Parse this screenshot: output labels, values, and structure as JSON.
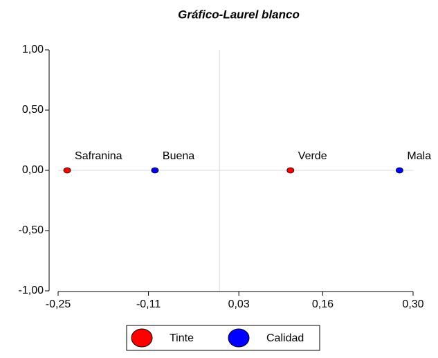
{
  "chart_data": {
    "type": "scatter",
    "title": "Gráfico-Laurel blanco",
    "xlim": [
      -0.25,
      0.3
    ],
    "ylim": [
      -1,
      1
    ],
    "xticks": [
      {
        "value": -0.25,
        "label": "-0,25"
      },
      {
        "value": -0.11,
        "label": "-0,11"
      },
      {
        "value": 0.03,
        "label": "0,03"
      },
      {
        "value": 0.16,
        "label": "0,16"
      },
      {
        "value": 0.3,
        "label": "0,30"
      }
    ],
    "yticks": [
      {
        "value": 1,
        "label": "1,00"
      },
      {
        "value": 0.5,
        "label": "0,50"
      },
      {
        "value": 0,
        "label": "0,00"
      },
      {
        "value": -0.5,
        "label": "-0,50"
      },
      {
        "value": -1,
        "label": "-1,00"
      }
    ],
    "zero_lines": true,
    "legend": "bottom",
    "series": [
      {
        "name": "Tinte",
        "color": "#ff0000",
        "x": [
          -0.236,
          0.11
        ],
        "values": [
          0,
          0
        ],
        "labels": [
          "Safranina",
          "Verde"
        ]
      },
      {
        "name": "Calidad",
        "color": "#0000ff",
        "x": [
          -0.1,
          0.279
        ],
        "values": [
          0,
          0
        ],
        "labels": [
          "Buena",
          "Mala"
        ]
      }
    ]
  }
}
